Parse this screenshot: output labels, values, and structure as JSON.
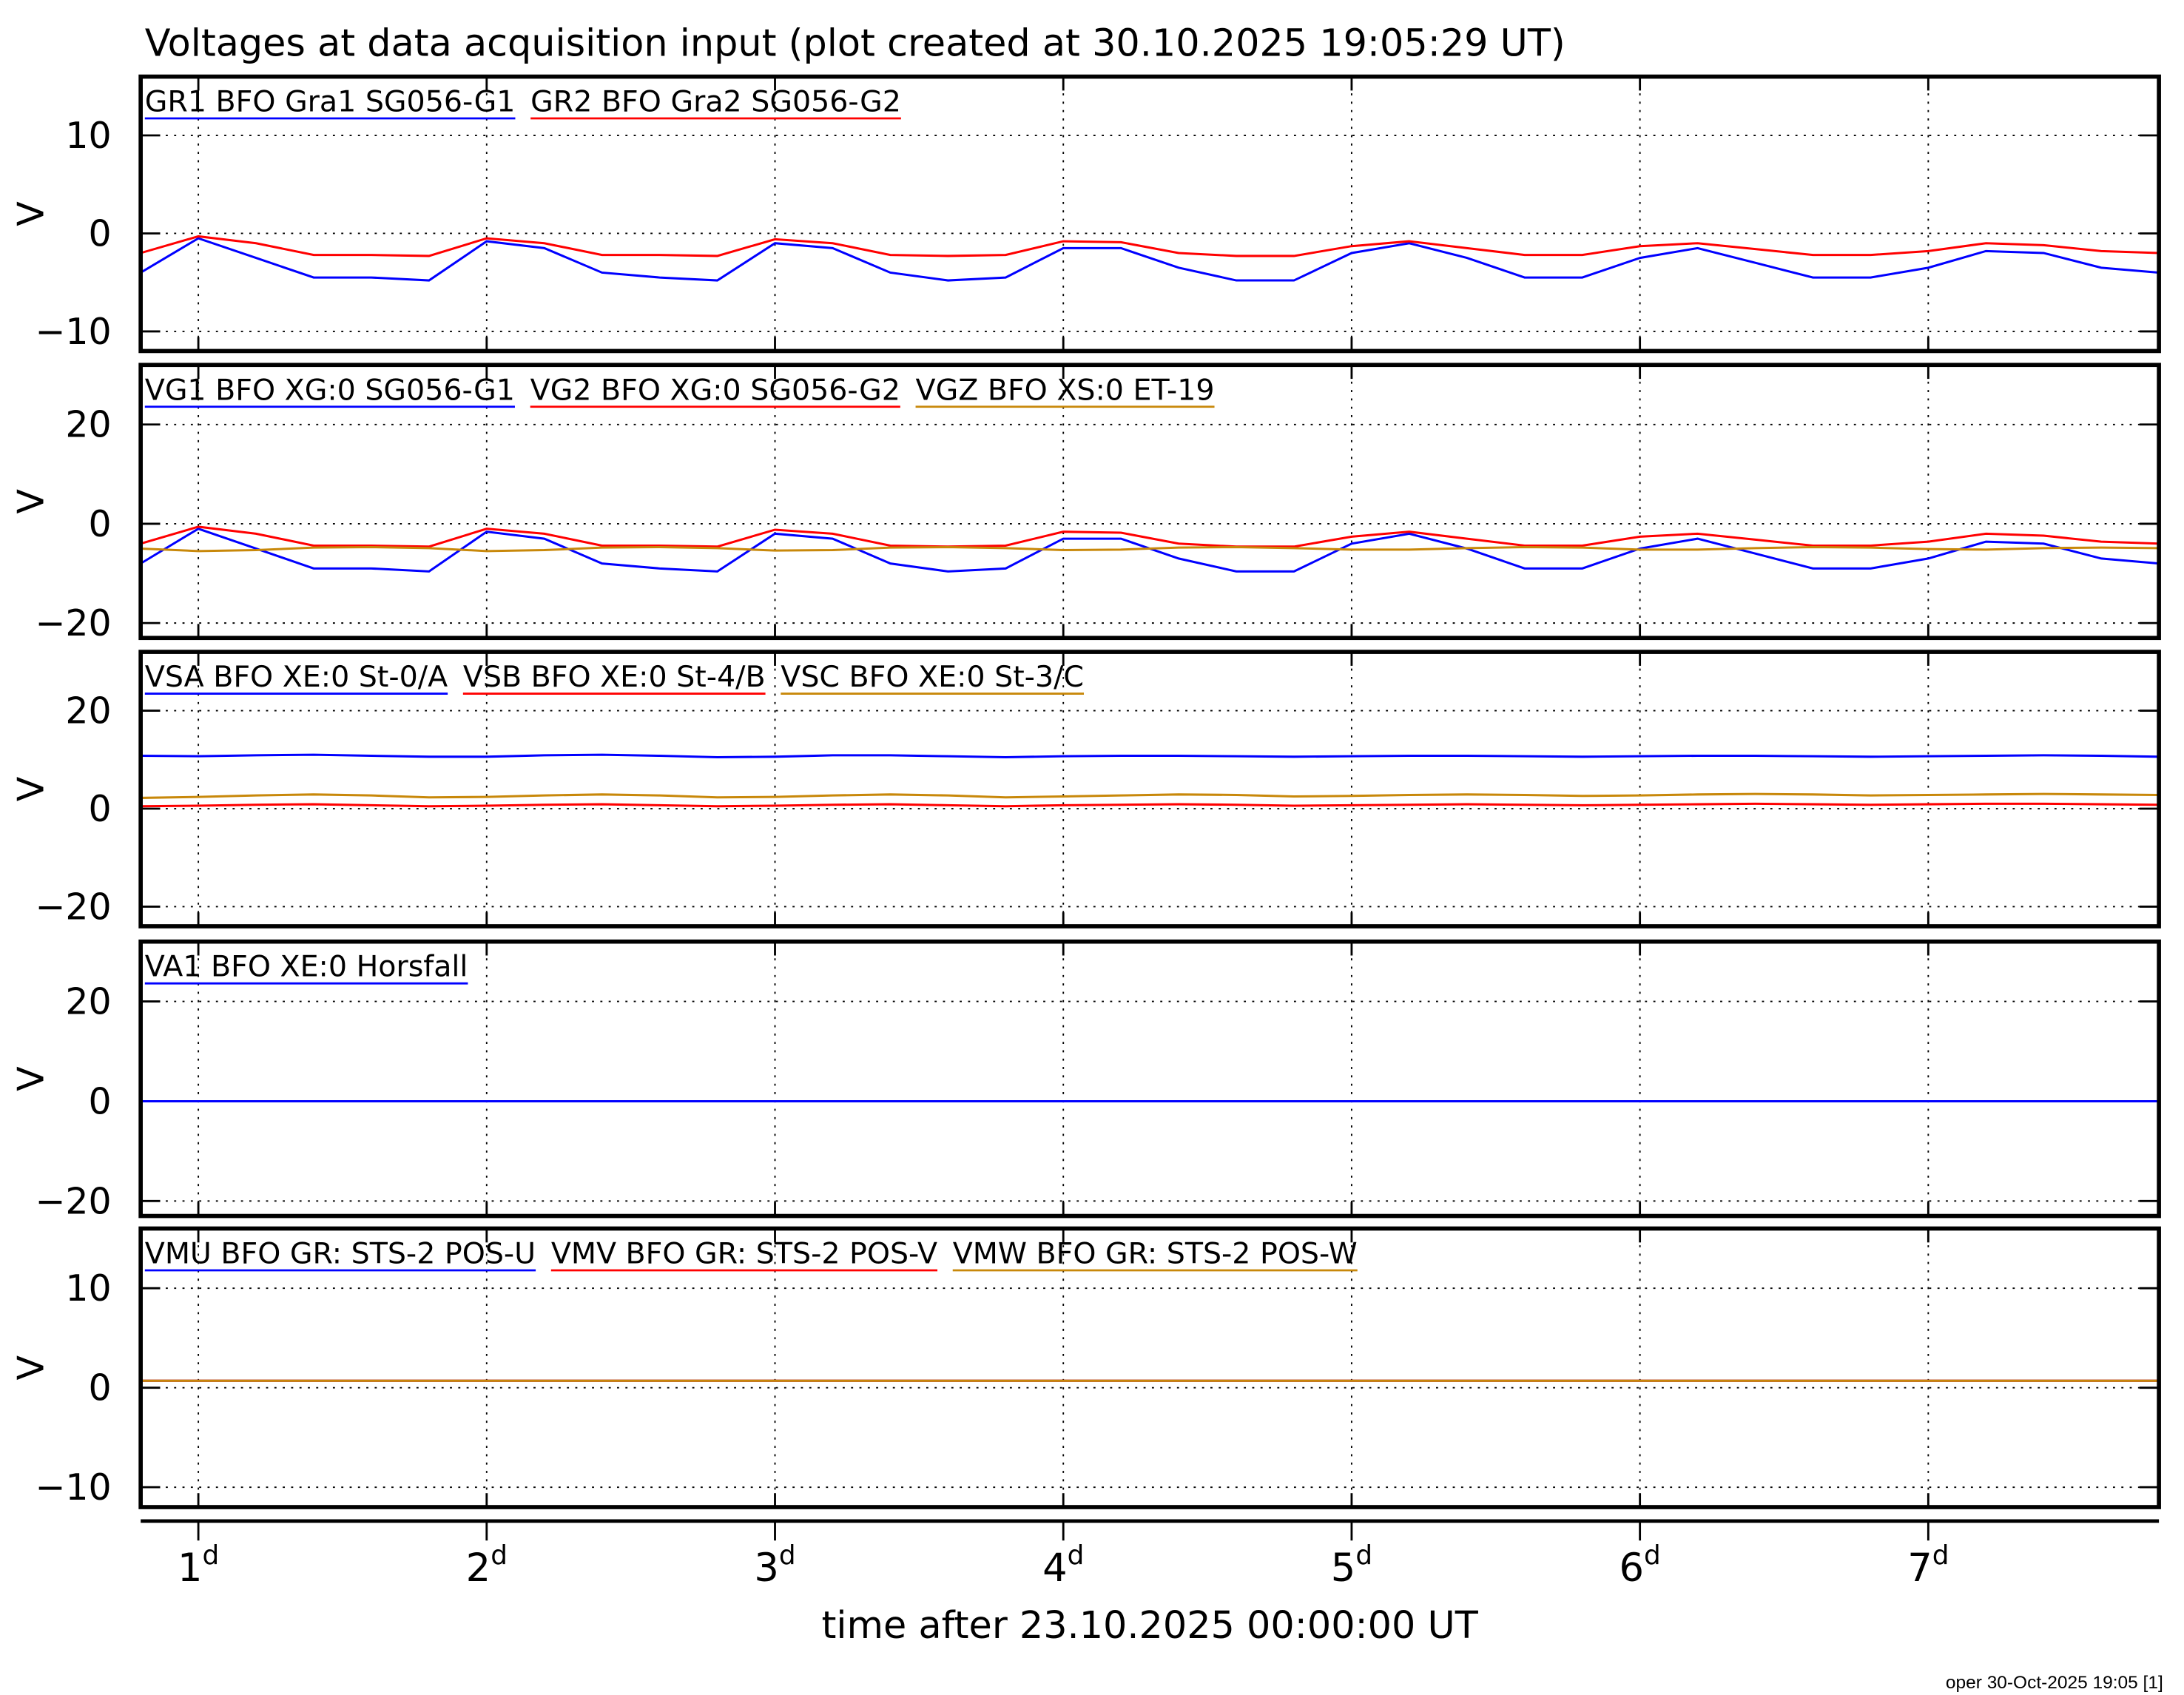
{
  "footer": "oper 30-Oct-2025 19:05 [1]",
  "chart_data": [
    {
      "type": "line",
      "title": "Voltages at data acquisition input (plot created at 30.10.2025 19:05:29 UT)",
      "ylabel": "V",
      "xlim": [
        0.8,
        7.8
      ],
      "xticks": [
        1,
        2,
        3,
        4,
        5,
        6,
        7
      ],
      "ylim": [
        -12,
        16
      ],
      "yticks": [
        {
          "value": -10,
          "label": "−10"
        },
        0,
        10
      ],
      "grid": true,
      "x": [
        0.8,
        1.0,
        1.2,
        1.4,
        1.6,
        1.8,
        2.0,
        2.2,
        2.4,
        2.6,
        2.8,
        3.0,
        3.2,
        3.4,
        3.6,
        3.8,
        4.0,
        4.2,
        4.4,
        4.6,
        4.8,
        5.0,
        5.2,
        5.4,
        5.6,
        5.8,
        6.0,
        6.2,
        6.4,
        6.6,
        6.8,
        7.0,
        7.2,
        7.4,
        7.6,
        7.8
      ],
      "series": [
        {
          "name": "GR1 BFO Gra1 SG056-G1",
          "color": "#0000ff",
          "values": [
            -4,
            -0.5,
            -2.5,
            -4.5,
            -4.5,
            -4.8,
            -0.8,
            -1.5,
            -4,
            -4.5,
            -4.8,
            -1,
            -1.5,
            -4,
            -4.8,
            -4.5,
            -1.5,
            -1.5,
            -3.5,
            -4.8,
            -4.8,
            -2,
            -1,
            -2.5,
            -4.5,
            -4.5,
            -2.5,
            -1.5,
            -3,
            -4.5,
            -4.5,
            -3.5,
            -1.8,
            -2,
            -3.5,
            -4
          ]
        },
        {
          "name": "GR2 BFO Gra2 SG056-G2",
          "color": "#ff0000",
          "values": [
            -2,
            -0.3,
            -1,
            -2.2,
            -2.2,
            -2.3,
            -0.5,
            -1,
            -2.2,
            -2.2,
            -2.3,
            -0.6,
            -1,
            -2.2,
            -2.3,
            -2.2,
            -0.8,
            -0.9,
            -2,
            -2.3,
            -2.3,
            -1.3,
            -0.8,
            -1.5,
            -2.2,
            -2.2,
            -1.3,
            -1,
            -1.6,
            -2.2,
            -2.2,
            -1.8,
            -1,
            -1.2,
            -1.8,
            -2
          ]
        }
      ]
    },
    {
      "type": "line",
      "ylabel": "V",
      "xlim": [
        0.8,
        7.8
      ],
      "xticks": [
        1,
        2,
        3,
        4,
        5,
        6,
        7
      ],
      "ylim": [
        -23,
        32
      ],
      "yticks": [
        {
          "value": -20,
          "label": "−20"
        },
        0,
        20
      ],
      "grid": true,
      "x": [
        0.8,
        1.0,
        1.2,
        1.4,
        1.6,
        1.8,
        2.0,
        2.2,
        2.4,
        2.6,
        2.8,
        3.0,
        3.2,
        3.4,
        3.6,
        3.8,
        4.0,
        4.2,
        4.4,
        4.6,
        4.8,
        5.0,
        5.2,
        5.4,
        5.6,
        5.8,
        6.0,
        6.2,
        6.4,
        6.6,
        6.8,
        7.0,
        7.2,
        7.4,
        7.6,
        7.8
      ],
      "series": [
        {
          "name": "VG1 BFO XG:0 SG056-G1",
          "color": "#0000ff",
          "values": [
            -8,
            -1,
            -5,
            -9,
            -9,
            -9.6,
            -1.6,
            -3,
            -8,
            -9,
            -9.6,
            -2,
            -3,
            -8,
            -9.6,
            -9,
            -3,
            -3,
            -7,
            -9.6,
            -9.6,
            -4,
            -2,
            -5,
            -9,
            -9,
            -5,
            -3,
            -6,
            -9,
            -9,
            -7,
            -3.6,
            -4,
            -7,
            -8
          ]
        },
        {
          "name": "VG2 BFO XG:0 SG056-G2",
          "color": "#ff0000",
          "values": [
            -4,
            -0.6,
            -2,
            -4.4,
            -4.4,
            -4.6,
            -1,
            -2,
            -4.4,
            -4.4,
            -4.6,
            -1.2,
            -2,
            -4.4,
            -4.6,
            -4.4,
            -1.6,
            -1.8,
            -4,
            -4.6,
            -4.6,
            -2.6,
            -1.6,
            -3,
            -4.4,
            -4.4,
            -2.6,
            -2,
            -3.2,
            -4.4,
            -4.4,
            -3.6,
            -2,
            -2.4,
            -3.6,
            -4
          ]
        },
        {
          "name": "VGZ BFO XS:0 ET-19",
          "color": "#c8880a",
          "values": [
            -5,
            -5.5,
            -5.3,
            -4.8,
            -4.7,
            -4.9,
            -5.5,
            -5.3,
            -4.8,
            -4.7,
            -4.9,
            -5.4,
            -5.3,
            -4.8,
            -4.7,
            -4.9,
            -5.3,
            -5.2,
            -4.8,
            -4.7,
            -4.9,
            -5.2,
            -5.2,
            -4.9,
            -4.7,
            -4.8,
            -5.2,
            -5.2,
            -4.9,
            -4.7,
            -4.8,
            -5.1,
            -5.2,
            -4.9,
            -4.8,
            -4.9
          ]
        }
      ]
    },
    {
      "type": "line",
      "ylabel": "V",
      "xlim": [
        0.8,
        7.8
      ],
      "xticks": [
        1,
        2,
        3,
        4,
        5,
        6,
        7
      ],
      "ylim": [
        -24,
        32
      ],
      "yticks": [
        {
          "value": -20,
          "label": "−20"
        },
        0,
        20
      ],
      "grid": true,
      "x": [
        0.8,
        1.0,
        1.2,
        1.4,
        1.6,
        1.8,
        2.0,
        2.2,
        2.4,
        2.6,
        2.8,
        3.0,
        3.2,
        3.4,
        3.6,
        3.8,
        4.0,
        4.2,
        4.4,
        4.6,
        4.8,
        5.0,
        5.2,
        5.4,
        5.6,
        5.8,
        6.0,
        6.2,
        6.4,
        6.6,
        6.8,
        7.0,
        7.2,
        7.4,
        7.6,
        7.8
      ],
      "series": [
        {
          "name": "VSA BFO XE:0 St-0/A",
          "color": "#0000ff",
          "values": [
            10.8,
            10.7,
            10.9,
            11,
            10.8,
            10.6,
            10.6,
            10.9,
            11,
            10.8,
            10.5,
            10.6,
            10.9,
            10.9,
            10.7,
            10.5,
            10.7,
            10.8,
            10.8,
            10.7,
            10.6,
            10.7,
            10.8,
            10.8,
            10.7,
            10.6,
            10.7,
            10.8,
            10.8,
            10.7,
            10.6,
            10.7,
            10.8,
            10.9,
            10.8,
            10.6
          ]
        },
        {
          "name": "VSB BFO XE:0 St-4/B",
          "color": "#ff0000",
          "values": [
            0.5,
            0.6,
            0.8,
            0.9,
            0.7,
            0.5,
            0.6,
            0.8,
            0.9,
            0.7,
            0.5,
            0.6,
            0.8,
            0.9,
            0.7,
            0.5,
            0.7,
            0.8,
            0.9,
            0.8,
            0.6,
            0.7,
            0.8,
            0.9,
            0.8,
            0.7,
            0.8,
            0.9,
            1,
            0.9,
            0.8,
            0.9,
            1,
            1,
            0.9,
            0.8
          ]
        },
        {
          "name": "VSC BFO XE:0 St-3/C",
          "color": "#c8880a",
          "values": [
            2.2,
            2.4,
            2.7,
            2.9,
            2.7,
            2.3,
            2.4,
            2.7,
            2.9,
            2.7,
            2.3,
            2.4,
            2.7,
            2.9,
            2.7,
            2.3,
            2.5,
            2.7,
            2.9,
            2.8,
            2.5,
            2.6,
            2.8,
            2.9,
            2.8,
            2.6,
            2.7,
            2.9,
            3,
            2.9,
            2.7,
            2.8,
            2.9,
            3,
            2.9,
            2.8
          ]
        }
      ]
    },
    {
      "type": "line",
      "ylabel": "V",
      "xlim": [
        0.8,
        7.8
      ],
      "xticks": [
        1,
        2,
        3,
        4,
        5,
        6,
        7
      ],
      "ylim": [
        -23,
        32
      ],
      "yticks": [
        {
          "value": -20,
          "label": "−20"
        },
        0,
        20
      ],
      "grid": true,
      "x": [
        0.8,
        1.0,
        1.2,
        1.4,
        1.6,
        1.8,
        2.0,
        2.2,
        2.4,
        2.6,
        2.8,
        3.0,
        3.2,
        3.4,
        3.6,
        3.8,
        4.0,
        4.2,
        4.4,
        4.6,
        4.8,
        5.0,
        5.2,
        5.4,
        5.6,
        5.8,
        6.0,
        6.2,
        6.4,
        6.6,
        6.8,
        7.0,
        7.2,
        7.4,
        7.6,
        7.8
      ],
      "series": [
        {
          "name": "VA1 BFO XE:0 Horsfall",
          "color": "#0000ff",
          "values": [
            0,
            0,
            0,
            0,
            0,
            0,
            0,
            0,
            0,
            0,
            0,
            0,
            0,
            0,
            0,
            0,
            0,
            0,
            0,
            0,
            0,
            0,
            0,
            0,
            0,
            0,
            0,
            0,
            0,
            0,
            0,
            0,
            0,
            0,
            0,
            0
          ]
        }
      ]
    },
    {
      "type": "line",
      "ylabel": "V",
      "xlabel": "time after 23.10.2025 00:00:00 UT",
      "xlim": [
        0.8,
        7.8
      ],
      "xticks": [
        {
          "value": 1,
          "label": "1d"
        },
        {
          "value": 2,
          "label": "2d"
        },
        {
          "value": 3,
          "label": "3d"
        },
        {
          "value": 4,
          "label": "4d"
        },
        {
          "value": 5,
          "label": "5d"
        },
        {
          "value": 6,
          "label": "6d"
        },
        {
          "value": 7,
          "label": "7d"
        }
      ],
      "ylim": [
        -12,
        16
      ],
      "yticks": [
        {
          "value": -10,
          "label": "−10"
        },
        0,
        10
      ],
      "grid": true,
      "x": [
        0.8,
        1.0,
        1.2,
        1.4,
        1.6,
        1.8,
        2.0,
        2.2,
        2.4,
        2.6,
        2.8,
        3.0,
        3.2,
        3.4,
        3.6,
        3.8,
        4.0,
        4.2,
        4.4,
        4.6,
        4.8,
        5.0,
        5.2,
        5.4,
        5.6,
        5.8,
        6.0,
        6.2,
        6.4,
        6.6,
        6.8,
        7.0,
        7.2,
        7.4,
        7.6,
        7.8
      ],
      "series": [
        {
          "name": "VMU BFO GR: STS-2 POS-U",
          "color": "#0000ff",
          "values": [
            0.7,
            0.7,
            0.7,
            0.7,
            0.7,
            0.7,
            0.7,
            0.7,
            0.7,
            0.7,
            0.7,
            0.7,
            0.7,
            0.7,
            0.7,
            0.7,
            0.7,
            0.7,
            0.7,
            0.7,
            0.7,
            0.7,
            0.7,
            0.7,
            0.7,
            0.7,
            0.7,
            0.7,
            0.7,
            0.7,
            0.7,
            0.7,
            0.7,
            0.7,
            0.7,
            0.7
          ]
        },
        {
          "name": "VMV BFO GR: STS-2 POS-V",
          "color": "#ff0000",
          "values": [
            0.7,
            0.7,
            0.7,
            0.7,
            0.7,
            0.7,
            0.7,
            0.7,
            0.7,
            0.7,
            0.7,
            0.7,
            0.7,
            0.7,
            0.7,
            0.7,
            0.7,
            0.7,
            0.7,
            0.7,
            0.7,
            0.7,
            0.7,
            0.7,
            0.7,
            0.7,
            0.7,
            0.7,
            0.7,
            0.7,
            0.7,
            0.7,
            0.7,
            0.7,
            0.7,
            0.7
          ]
        },
        {
          "name": "VMW BFO GR: STS-2 POS-W",
          "color": "#c8880a",
          "values": [
            0.7,
            0.7,
            0.7,
            0.7,
            0.7,
            0.7,
            0.7,
            0.7,
            0.7,
            0.7,
            0.7,
            0.7,
            0.7,
            0.7,
            0.7,
            0.7,
            0.7,
            0.7,
            0.7,
            0.7,
            0.7,
            0.7,
            0.7,
            0.7,
            0.7,
            0.7,
            0.7,
            0.7,
            0.7,
            0.7,
            0.7,
            0.7,
            0.7,
            0.7,
            0.7,
            0.7
          ]
        }
      ]
    }
  ]
}
